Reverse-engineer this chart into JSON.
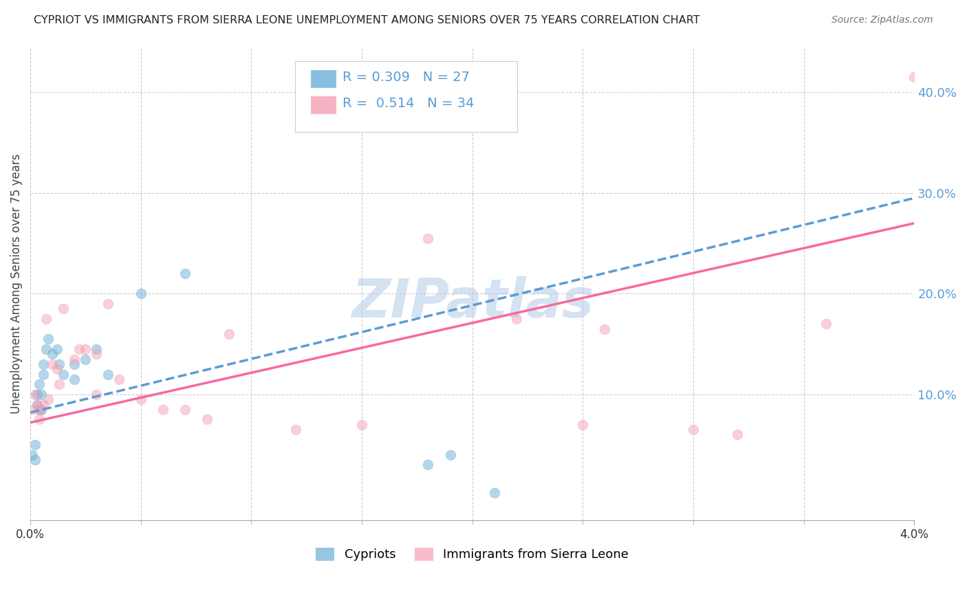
{
  "title": "CYPRIOT VS IMMIGRANTS FROM SIERRA LEONE UNEMPLOYMENT AMONG SENIORS OVER 75 YEARS CORRELATION CHART",
  "source": "Source: ZipAtlas.com",
  "ylabel": "Unemployment Among Seniors over 75 years",
  "right_ytick_labels": [
    "10.0%",
    "20.0%",
    "30.0%",
    "40.0%"
  ],
  "right_ytick_values": [
    0.1,
    0.2,
    0.3,
    0.4
  ],
  "legend_entry1_color": "#6baed6",
  "legend_entry1_R": 0.309,
  "legend_entry1_N": 27,
  "legend_entry2_color": "#f4a0b5",
  "legend_entry2_R": 0.514,
  "legend_entry2_N": 34,
  "legend_labels": [
    "Cypriots",
    "Immigrants from Sierra Leone"
  ],
  "watermark": "ZIPatlas",
  "watermark_color": "#b8cfe8",
  "cypriot_x": [
    0.0001,
    0.0002,
    0.0002,
    0.0003,
    0.0003,
    0.0004,
    0.0004,
    0.0005,
    0.0005,
    0.0006,
    0.0006,
    0.0007,
    0.0008,
    0.001,
    0.0012,
    0.0013,
    0.0015,
    0.002,
    0.002,
    0.0025,
    0.003,
    0.0035,
    0.005,
    0.007,
    0.018,
    0.019,
    0.021
  ],
  "cypriot_y": [
    0.04,
    0.035,
    0.05,
    0.09,
    0.1,
    0.085,
    0.11,
    0.085,
    0.1,
    0.12,
    0.13,
    0.145,
    0.155,
    0.14,
    0.145,
    0.13,
    0.12,
    0.13,
    0.115,
    0.135,
    0.145,
    0.12,
    0.2,
    0.22,
    0.03,
    0.04,
    0.002
  ],
  "sierra_x": [
    0.0001,
    0.0002,
    0.0003,
    0.0004,
    0.0005,
    0.0006,
    0.0007,
    0.0008,
    0.001,
    0.0012,
    0.0013,
    0.0015,
    0.002,
    0.0022,
    0.0025,
    0.003,
    0.003,
    0.0035,
    0.004,
    0.005,
    0.006,
    0.007,
    0.008,
    0.009,
    0.012,
    0.015,
    0.018,
    0.022,
    0.025,
    0.026,
    0.03,
    0.032,
    0.036,
    0.04
  ],
  "sierra_y": [
    0.085,
    0.1,
    0.09,
    0.075,
    0.085,
    0.09,
    0.175,
    0.095,
    0.13,
    0.125,
    0.11,
    0.185,
    0.135,
    0.145,
    0.145,
    0.14,
    0.1,
    0.19,
    0.115,
    0.095,
    0.085,
    0.085,
    0.075,
    0.16,
    0.065,
    0.07,
    0.255,
    0.175,
    0.07,
    0.165,
    0.065,
    0.06,
    0.17,
    0.415
  ],
  "blue_line_x": [
    0.0,
    0.04
  ],
  "blue_line_y": [
    0.082,
    0.295
  ],
  "pink_line_x": [
    0.0,
    0.04
  ],
  "pink_line_y": [
    0.072,
    0.27
  ],
  "xmin": 0.0,
  "xmax": 0.04,
  "ymin": -0.025,
  "ymax": 0.445,
  "bg_color": "#ffffff",
  "scatter_alpha": 0.5,
  "marker_size": 110,
  "grid_color": "#cccccc",
  "blue_color": "#5b9bd5",
  "pink_color": "#f768a1"
}
